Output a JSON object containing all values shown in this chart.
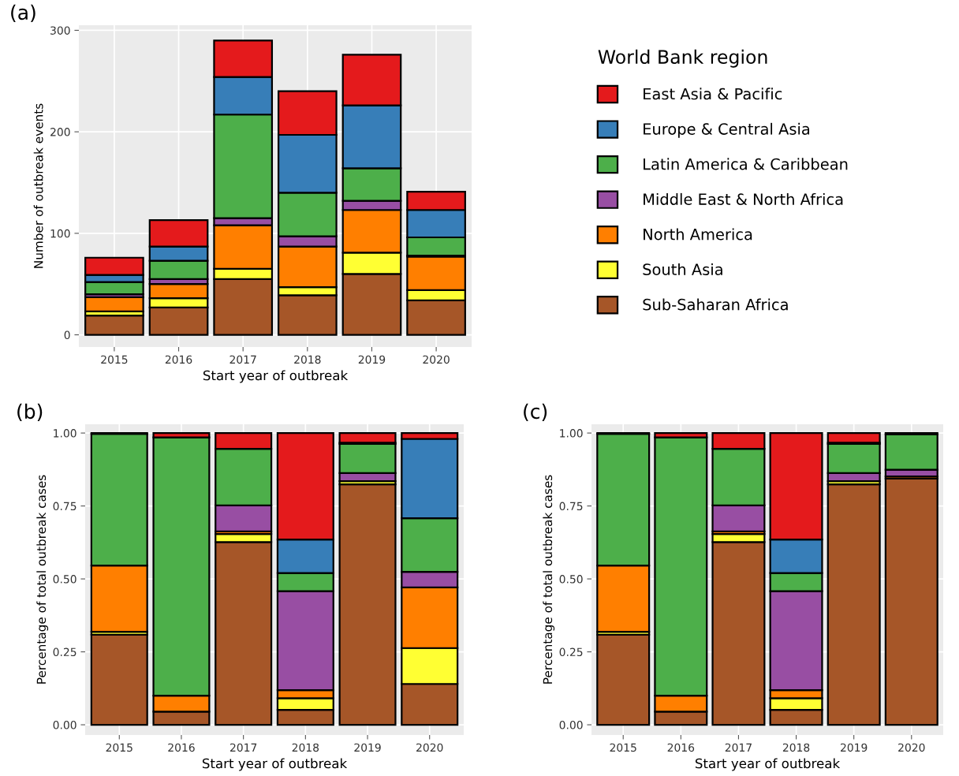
{
  "chart_data": [
    {
      "type": "bar",
      "title": "(a)",
      "xlabel": "Start year of outbreak",
      "ylabel": "Number of outbreak events",
      "stacked": true,
      "legend": "right",
      "legend_title": "World Bank region",
      "grid": true,
      "categories": [
        "2015",
        "2016",
        "2017",
        "2018",
        "2019",
        "2020"
      ],
      "ylim": [
        -12,
        305
      ],
      "yticks": [
        0,
        100,
        200,
        300
      ],
      "series": [
        {
          "name": "Sub-Saharan Africa",
          "color": "#a65628",
          "values": [
            19,
            27,
            55,
            39,
            60,
            34
          ]
        },
        {
          "name": "South Asia",
          "color": "#ffff33",
          "values": [
            4,
            9,
            10,
            8,
            21,
            10
          ]
        },
        {
          "name": "North America",
          "color": "#ff7f00",
          "values": [
            14,
            14,
            43,
            40,
            42,
            33
          ]
        },
        {
          "name": "Middle East & North Africa",
          "color": "#984ea3",
          "values": [
            3,
            5,
            7,
            10,
            9,
            1
          ]
        },
        {
          "name": "Latin America & Caribbean",
          "color": "#4daf4a",
          "values": [
            12,
            18,
            102,
            43,
            32,
            18
          ]
        },
        {
          "name": "Europe & Central Asia",
          "color": "#377eb8",
          "values": [
            7,
            14,
            37,
            57,
            62,
            27
          ]
        },
        {
          "name": "East Asia & Pacific",
          "color": "#e41a1c",
          "values": [
            17,
            26,
            36,
            43,
            50,
            18
          ]
        }
      ]
    },
    {
      "type": "bar",
      "title": "(b)",
      "xlabel": "Start year of outbreak",
      "ylabel": "Percentage of total outbreak cases",
      "stacked": true,
      "grid": true,
      "categories": [
        "2015",
        "2016",
        "2017",
        "2018",
        "2019",
        "2020"
      ],
      "ylim": [
        -0.035,
        1.03
      ],
      "yticks": [
        {
          "value": 0,
          "label": "0.00"
        },
        {
          "value": 0.25,
          "label": "0.25"
        },
        {
          "value": 0.5,
          "label": "0.50"
        },
        {
          "value": 0.75,
          "label": "0.75"
        },
        {
          "value": 1,
          "label": "1.00"
        }
      ],
      "series": [
        {
          "color": "#a65628",
          "values": [
            0.309,
            0.045,
            0.626,
            0.051,
            0.824,
            0.14
          ]
        },
        {
          "color": "#ffff33",
          "values": [
            0.01,
            null,
            0.028,
            0.04,
            0.011,
            0.123
          ]
        },
        {
          "color": "#ff7f00",
          "values": [
            0.227,
            0.055,
            0.009,
            0.028,
            null,
            0.208
          ]
        },
        {
          "color": "#984ea3",
          "values": [
            null,
            null,
            0.089,
            0.339,
            0.028,
            0.053
          ]
        },
        {
          "color": "#4daf4a",
          "values": [
            0.451,
            0.885,
            0.194,
            0.062,
            0.1,
            0.184
          ]
        },
        {
          "color": "#377eb8",
          "values": [
            null,
            null,
            null,
            0.115,
            0.004,
            0.272
          ]
        },
        {
          "color": "#e41a1c",
          "values": [
            0.003,
            0.015,
            0.054,
            0.365,
            0.033,
            0.02
          ]
        }
      ]
    },
    {
      "type": "bar",
      "title": "(c)",
      "xlabel": "Start year of outbreak",
      "ylabel": "Percentage of total outbreak cases",
      "stacked": true,
      "grid": true,
      "categories": [
        "2015",
        "2016",
        "2017",
        "2018",
        "2019",
        "2020"
      ],
      "ylim": [
        -0.035,
        1.03
      ],
      "yticks": [
        {
          "value": 0,
          "label": "0.00"
        },
        {
          "value": 0.25,
          "label": "0.25"
        },
        {
          "value": 0.5,
          "label": "0.50"
        },
        {
          "value": 0.75,
          "label": "0.75"
        },
        {
          "value": 1,
          "label": "1.00"
        }
      ],
      "series": [
        {
          "color": "#a65628",
          "values": [
            0.309,
            0.045,
            0.626,
            0.051,
            0.824,
            0.844
          ]
        },
        {
          "color": "#ffff33",
          "values": [
            0.01,
            null,
            0.028,
            0.04,
            0.011,
            null
          ]
        },
        {
          "color": "#ff7f00",
          "values": [
            0.227,
            0.055,
            0.009,
            0.028,
            null,
            0.007
          ]
        },
        {
          "color": "#984ea3",
          "values": [
            null,
            null,
            0.089,
            0.339,
            0.028,
            0.023
          ]
        },
        {
          "color": "#4daf4a",
          "values": [
            0.451,
            0.885,
            0.194,
            0.062,
            0.1,
            0.122
          ]
        },
        {
          "color": "#377eb8",
          "values": [
            null,
            null,
            null,
            0.115,
            0.004,
            null
          ]
        },
        {
          "color": "#e41a1c",
          "values": [
            0.003,
            0.015,
            0.054,
            0.365,
            0.033,
            0.004
          ]
        }
      ]
    }
  ]
}
